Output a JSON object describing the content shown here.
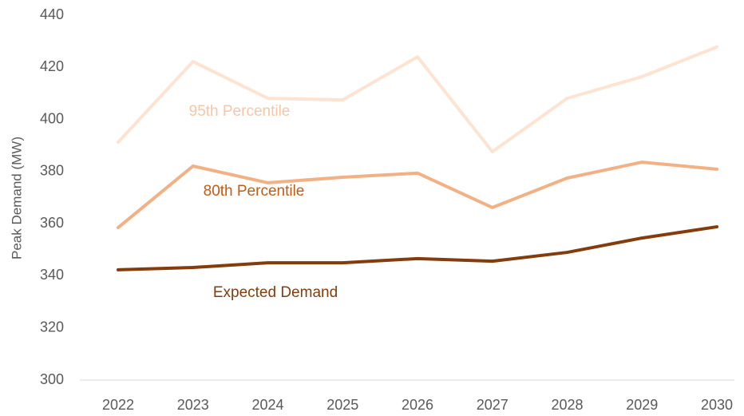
{
  "chart_data": {
    "type": "line",
    "y_label": "Peak Demand (MW)",
    "categories": [
      "2022",
      "2023",
      "2024",
      "2025",
      "2026",
      "2027",
      "2028",
      "2029",
      "2030"
    ],
    "series": [
      {
        "name": "95th Percentile",
        "color": "#fde3d2",
        "label_color": "#f6c6a6",
        "values": [
          391.3,
          422.2,
          408.1,
          407.5,
          424.0,
          387.6,
          408.1,
          416.4,
          427.8
        ]
      },
      {
        "name": "80th Percentile",
        "color": "#f2b085",
        "label_color": "#c55a11",
        "values": [
          358.5,
          382.1,
          375.7,
          377.8,
          379.4,
          366.2,
          377.5,
          383.6,
          380.9
        ]
      },
      {
        "name": "Expected Demand",
        "color": "#843c0c",
        "label_color": "#843c0c",
        "values": [
          342.3,
          343.2,
          345.0,
          345.0,
          346.6,
          345.6,
          349.0,
          354.5,
          358.8
        ]
      }
    ],
    "ylim": [
      300,
      440
    ],
    "yticks": [
      300,
      320,
      340,
      360,
      380,
      400,
      420,
      440
    ],
    "grid": false,
    "legend": "inline"
  }
}
